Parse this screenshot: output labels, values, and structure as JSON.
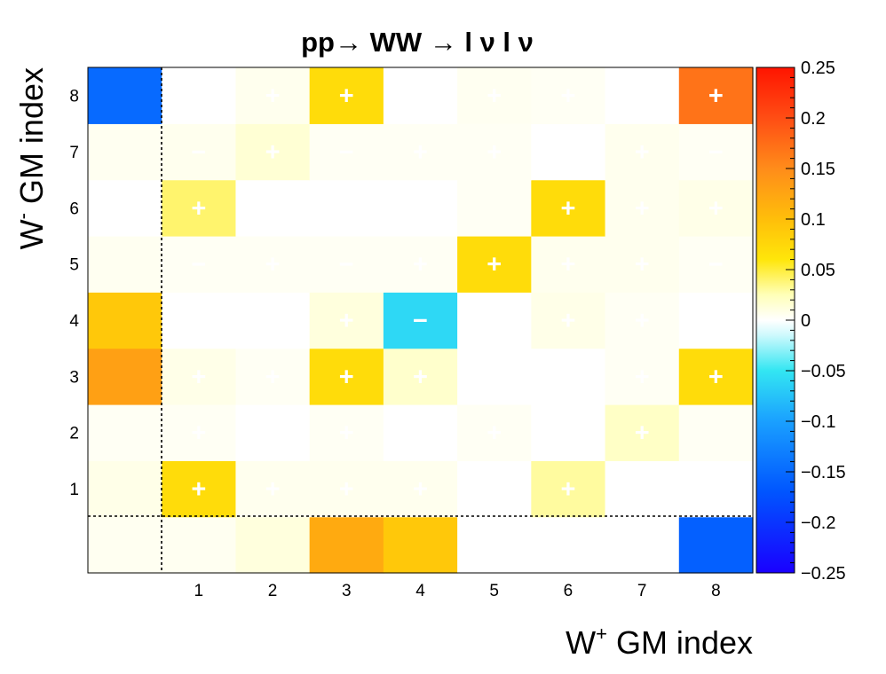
{
  "chart_data": {
    "type": "heatmap",
    "title": "pp→ WW → l ν l ν",
    "xlabel": {
      "base": "W",
      "sup": "+",
      "rest": " GM index"
    },
    "ylabel": {
      "base": "W",
      "sup": "-",
      "rest": " GM index"
    },
    "x_categories": [
      "",
      "1",
      "2",
      "3",
      "4",
      "5",
      "6",
      "7",
      "8"
    ],
    "y_categories": [
      "",
      "1",
      "2",
      "3",
      "4",
      "5",
      "6",
      "7",
      "8"
    ],
    "colorbar": {
      "range": [
        -0.25,
        0.25
      ],
      "ticks": [
        "0.25",
        "0.2",
        "0.15",
        "0.1",
        "0.05",
        "0",
        "−0.05",
        "−0.1",
        "−0.15",
        "−0.2",
        "−0.25"
      ]
    },
    "grid": false,
    "dashed_separators": true,
    "values": [
      [
        0.005,
        0.005,
        0.012,
        0.12,
        0.09,
        0.0,
        0.0,
        0.0,
        -0.16
      ],
      [
        0.008,
        0.07,
        0.006,
        0.006,
        0.006,
        0.0,
        0.03,
        0.0,
        0.0
      ],
      [
        0.004,
        0.004,
        0.0,
        0.004,
        0.0,
        0.004,
        0.0,
        0.02,
        0.004
      ],
      [
        0.13,
        0.008,
        0.004,
        0.07,
        0.018,
        0.0,
        0.0,
        0.004,
        0.07
      ],
      [
        0.09,
        0.0,
        0.0,
        0.012,
        -0.06,
        0.0,
        0.008,
        0.004,
        0.0
      ],
      [
        0.005,
        0.004,
        0.004,
        0.004,
        0.004,
        0.07,
        0.006,
        0.006,
        0.004
      ],
      [
        0.0,
        0.04,
        0.0,
        0.0,
        0.0,
        0.004,
        0.07,
        0.006,
        0.008
      ],
      [
        0.005,
        0.006,
        0.015,
        0.004,
        0.004,
        0.004,
        0.0,
        0.006,
        0.004
      ],
      [
        -0.15,
        0.0,
        0.006,
        0.07,
        0.0,
        0.005,
        0.004,
        0.0,
        0.17
      ]
    ],
    "signs": [
      [
        "",
        "",
        "",
        "",
        "",
        "",
        "",
        "",
        ""
      ],
      [
        "",
        "+",
        "+",
        "+",
        "+",
        "",
        "+",
        "",
        ""
      ],
      [
        "",
        "+",
        "",
        "+",
        "",
        "+",
        "",
        "+",
        ""
      ],
      [
        "",
        "+",
        "+",
        "+",
        "+",
        "",
        "",
        "+",
        "+"
      ],
      [
        "",
        "",
        "",
        "+",
        "−",
        "",
        "+",
        "+",
        ""
      ],
      [
        "",
        "−",
        "+",
        "−",
        "+",
        "+",
        "+",
        "+",
        "−"
      ],
      [
        "",
        "+",
        "",
        "",
        "",
        "",
        "+",
        "+",
        "+"
      ],
      [
        "",
        "−",
        "+",
        "−",
        "+",
        "+",
        "",
        "+",
        "−"
      ],
      [
        "",
        "",
        "+",
        "+",
        "",
        "+",
        "+",
        "",
        "+"
      ]
    ]
  }
}
